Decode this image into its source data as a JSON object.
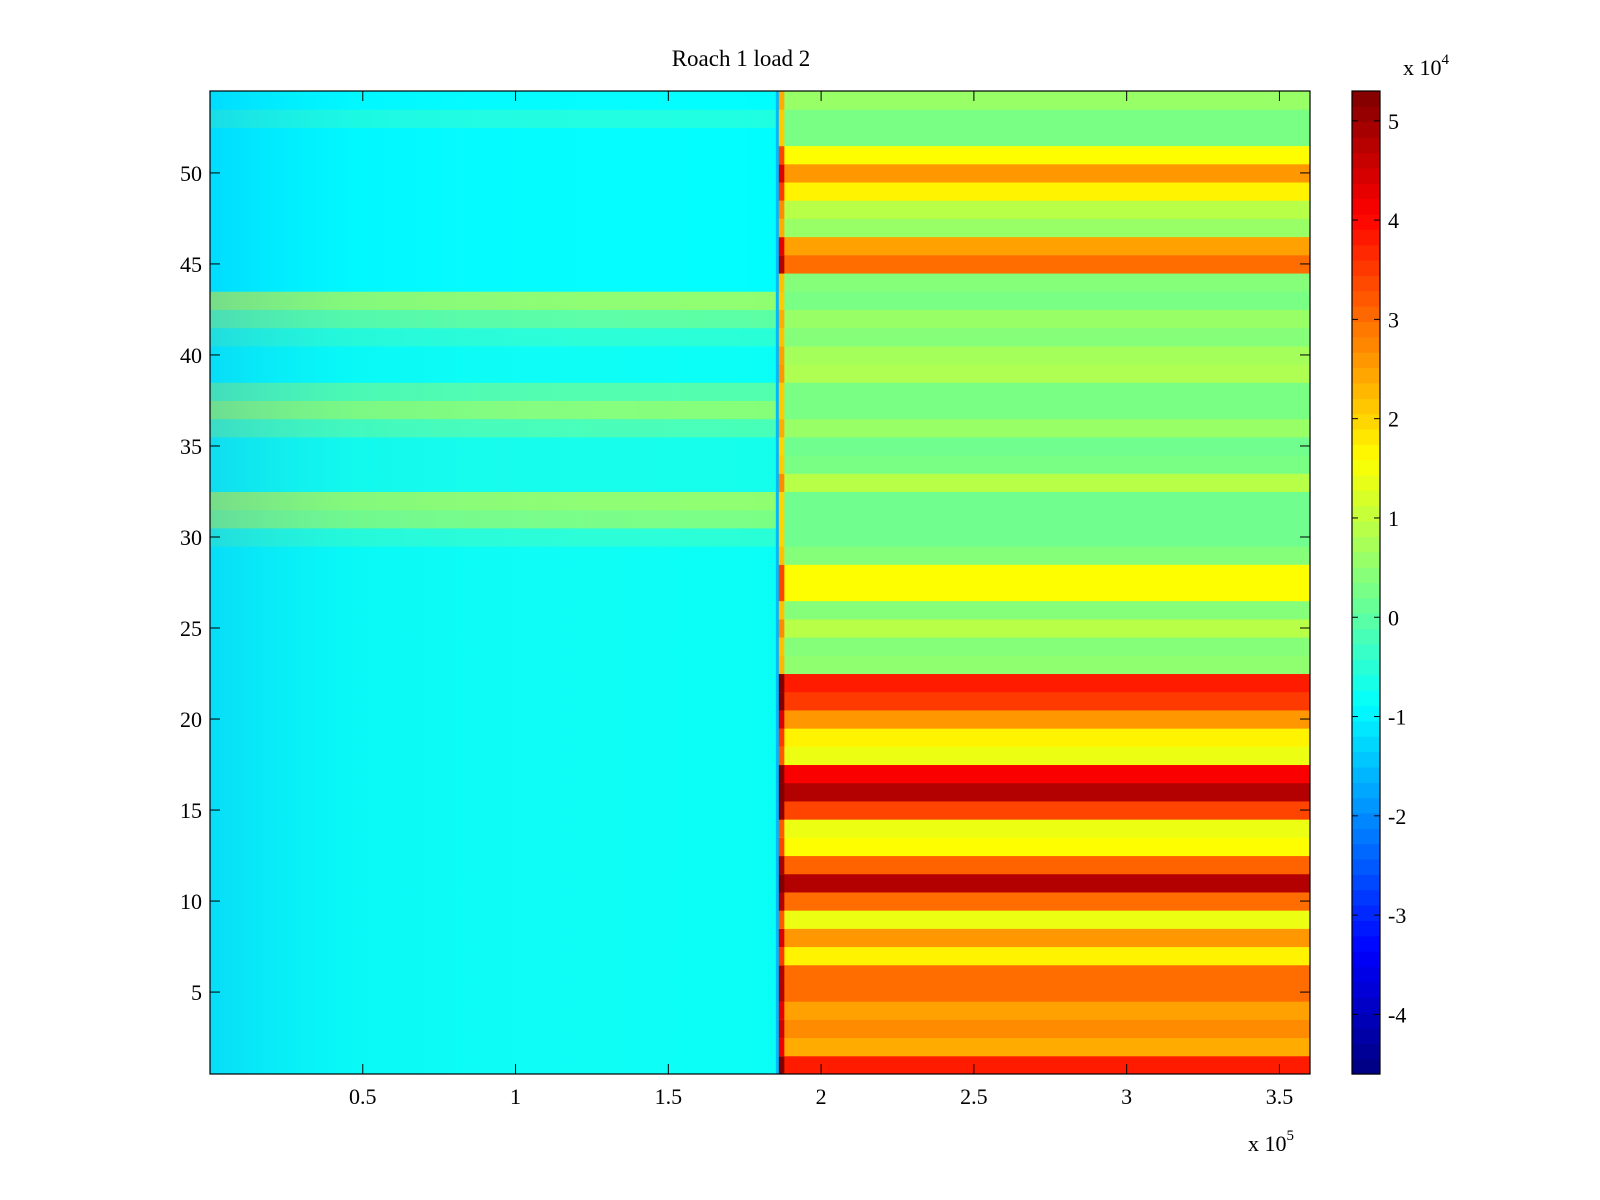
{
  "chart_data": {
    "type": "heatmap",
    "title": "Roach 1 load 2",
    "xlabel": "",
    "ylabel": "",
    "x_multiplier_label": "x 10",
    "x_multiplier_exponent": "5",
    "xlim": [
      0,
      3.6
    ],
    "xticks": [
      0.5,
      1,
      1.5,
      2,
      2.5,
      3,
      3.5
    ],
    "xtick_labels": [
      "0.5",
      "1",
      "1.5",
      "2",
      "2.5",
      "3",
      "3.5"
    ],
    "ylim": [
      0.5,
      54.5
    ],
    "yticks": [
      5,
      10,
      15,
      20,
      25,
      30,
      35,
      40,
      45,
      50
    ],
    "ytick_labels": [
      "5",
      "10",
      "15",
      "20",
      "25",
      "30",
      "35",
      "40",
      "45",
      "50"
    ],
    "colormap": "jet",
    "clim": [
      -4.6,
      5.3
    ],
    "colorbar_ticks": [
      -4,
      -3,
      -2,
      -1,
      0,
      1,
      2,
      3,
      4,
      5
    ],
    "colorbar_tick_labels": [
      "-4",
      "-3",
      "-2",
      "-1",
      "0",
      "1",
      "2",
      "3",
      "4",
      "5"
    ],
    "colorbar_multiplier_label": "x 10",
    "colorbar_multiplier_exponent": "4",
    "transition_x": 1.86,
    "rows": [
      1,
      2,
      3,
      4,
      5,
      6,
      7,
      8,
      9,
      10,
      11,
      12,
      13,
      14,
      15,
      16,
      17,
      18,
      19,
      20,
      21,
      22,
      23,
      24,
      25,
      26,
      27,
      28,
      29,
      30,
      31,
      32,
      33,
      34,
      35,
      36,
      37,
      38,
      39,
      40,
      41,
      42,
      43,
      44,
      45,
      46,
      47,
      48,
      49,
      50,
      51,
      52,
      53,
      54
    ],
    "left_region_values": [
      -0.8,
      -0.8,
      -0.8,
      -0.8,
      -0.8,
      -0.8,
      -0.8,
      -0.8,
      -0.8,
      -0.8,
      -0.8,
      -0.8,
      -0.8,
      -0.8,
      -0.8,
      -0.8,
      -0.8,
      -0.8,
      -0.8,
      -0.8,
      -0.8,
      -0.8,
      -0.8,
      -0.8,
      -0.8,
      -0.8,
      -0.8,
      -0.8,
      -0.8,
      -0.5,
      0.3,
      0.5,
      -0.7,
      -0.7,
      -0.7,
      -0.2,
      0.4,
      -0.1,
      -0.8,
      -0.8,
      -0.5,
      0.0,
      0.5,
      -0.9,
      -0.9,
      -0.9,
      -0.9,
      -0.9,
      -0.9,
      -0.9,
      -0.9,
      -0.9,
      -0.6,
      -0.9
    ],
    "right_region_values": [
      3.8,
      2.4,
      2.7,
      2.5,
      3.0,
      3.0,
      1.7,
      2.6,
      1.4,
      3.0,
      4.8,
      3.1,
      1.6,
      1.4,
      3.4,
      4.8,
      4.1,
      1.4,
      1.7,
      2.6,
      3.5,
      3.8,
      0.5,
      0.4,
      0.9,
      0.4,
      1.6,
      1.6,
      0.4,
      0.2,
      0.2,
      0.2,
      0.9,
      0.3,
      0.2,
      0.6,
      0.3,
      0.3,
      0.8,
      0.7,
      0.4,
      0.6,
      0.3,
      0.4,
      3.0,
      2.5,
      0.6,
      0.9,
      1.7,
      2.6,
      1.6,
      0.3,
      0.3,
      0.6
    ]
  }
}
